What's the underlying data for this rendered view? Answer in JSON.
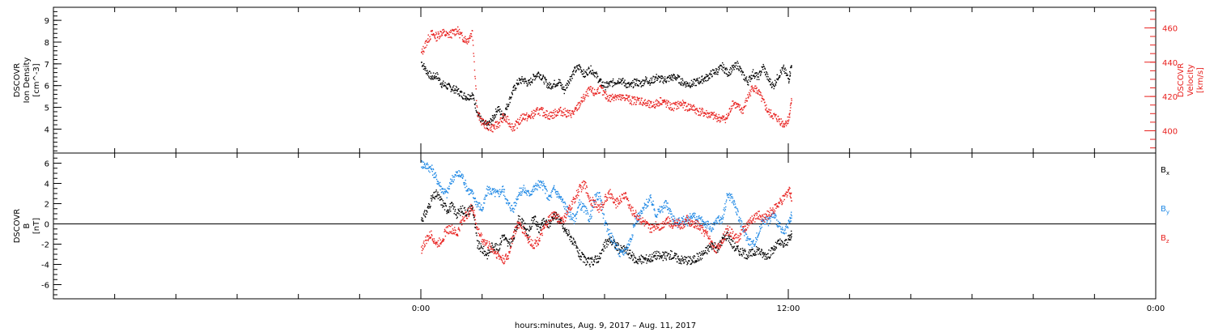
{
  "chart_data": [
    {
      "type": "scatter",
      "panel": "top",
      "ylabel_left": [
        "DSCOVR",
        "Ion Density",
        "[cm^-3]"
      ],
      "ylabel_right": [
        "DSCOVR",
        "Velocity",
        "[km/s]"
      ],
      "ylim_left": [
        2.9,
        9.6
      ],
      "ylim_right": [
        387,
        472
      ],
      "yticks_left": [
        "4",
        "5",
        "6",
        "7",
        "8",
        "9"
      ],
      "yticks_right": [
        "400",
        "420",
        "440",
        "460"
      ],
      "series": [
        {
          "axis": "left",
          "color": "#000000",
          "x": [
            0.0,
            0.5,
            1.0,
            1.5,
            2.0,
            2.5,
            3.0,
            3.5,
            4.0,
            4.5,
            5.0,
            5.5,
            6.0,
            6.5,
            7.0,
            7.5,
            8.0,
            8.5,
            9.0,
            9.5,
            10.0,
            10.5,
            11.0,
            11.5,
            12.0,
            12.5,
            13.0,
            13.5,
            14.0,
            14.5,
            15.0,
            15.5,
            16.0,
            16.5,
            17.0,
            17.5,
            18.0,
            18.5,
            19.0,
            19.5,
            20.0,
            20.5,
            21.0,
            21.5,
            22.0,
            22.5,
            23.0,
            23.5,
            24.0,
            24.5,
            25.0,
            25.5,
            26.0,
            26.5,
            27.0,
            27.5,
            28.0,
            28.5,
            29.0,
            29.5,
            30.0,
            30.5,
            31.0,
            31.5,
            32.0,
            32.5,
            33.0,
            33.5,
            34.0,
            34.5,
            35.0,
            35.5,
            36.0,
            36.3
          ],
          "y": [
            7.1,
            6.7,
            6.4,
            6.5,
            6.1,
            6.0,
            5.9,
            5.8,
            5.6,
            5.5,
            5.6,
            4.8,
            4.3,
            4.2,
            4.5,
            5.0,
            4.6,
            5.2,
            5.8,
            6.2,
            6.3,
            6.1,
            6.4,
            6.6,
            6.3,
            6.0,
            6.1,
            6.2,
            5.8,
            6.3,
            6.7,
            6.9,
            6.5,
            6.8,
            6.6,
            6.2,
            6.0,
            6.1,
            6.2,
            6.3,
            6.1,
            6.0,
            6.2,
            6.1,
            6.3,
            6.2,
            6.4,
            6.3,
            6.3,
            6.4,
            6.4,
            6.2,
            6.1,
            6.1,
            6.2,
            6.3,
            6.4,
            6.6,
            6.7,
            6.9,
            6.6,
            6.8,
            7.0,
            6.5,
            6.2,
            6.6,
            6.4,
            6.9,
            6.3,
            6.0,
            6.5,
            6.8,
            6.3,
            7.1
          ]
        },
        {
          "axis": "right",
          "color": "#e8201e",
          "x": [
            0.0,
            0.5,
            1.0,
            1.5,
            2.0,
            2.5,
            3.0,
            3.5,
            4.0,
            4.5,
            5.0,
            5.5,
            6.0,
            6.5,
            7.0,
            7.5,
            8.0,
            8.5,
            9.0,
            9.5,
            10.0,
            10.5,
            11.0,
            11.5,
            12.0,
            12.5,
            13.0,
            13.5,
            14.0,
            14.5,
            15.0,
            15.5,
            16.0,
            16.5,
            17.0,
            17.5,
            18.0,
            18.5,
            19.0,
            19.5,
            20.0,
            20.5,
            21.0,
            21.5,
            22.0,
            22.5,
            23.0,
            23.5,
            24.0,
            24.5,
            25.0,
            25.5,
            26.0,
            26.5,
            27.0,
            27.5,
            28.0,
            28.5,
            29.0,
            29.5,
            30.0,
            30.5,
            31.0,
            31.5,
            32.0,
            32.5,
            33.0,
            33.5,
            34.0,
            34.5,
            35.0,
            35.5,
            36.0,
            36.3
          ],
          "y": [
            445,
            452,
            457,
            455,
            458,
            456,
            457,
            459,
            455,
            453,
            458,
            410,
            405,
            403,
            402,
            404,
            408,
            406,
            402,
            405,
            409,
            408,
            410,
            412,
            411,
            409,
            410,
            412,
            411,
            410,
            411,
            416,
            420,
            424,
            422,
            425,
            421,
            419,
            421,
            419,
            420,
            418,
            418,
            418,
            416,
            415,
            416,
            418,
            416,
            414,
            415,
            416,
            414,
            414,
            412,
            411,
            410,
            409,
            408,
            407,
            408,
            417,
            414,
            412,
            420,
            426,
            423,
            417,
            411,
            409,
            407,
            404,
            407,
            420
          ]
        }
      ]
    },
    {
      "type": "scatter",
      "panel": "bottom",
      "ylabel_left": [
        "DSCOVR",
        "B",
        "[nT]"
      ],
      "ylim": [
        -7.4,
        7.0
      ],
      "yticks": [
        "-6",
        "-4",
        "-2",
        "0",
        "2",
        "4",
        "6"
      ],
      "legend": [
        {
          "label": "B",
          "sub": "x",
          "color": "#000000"
        },
        {
          "label": "B",
          "sub": "y",
          "color": "#1e88e5"
        },
        {
          "label": "B",
          "sub": "z",
          "color": "#e8201e"
        }
      ],
      "series": [
        {
          "name": "Bx",
          "color": "#000000",
          "x": [
            0.0,
            0.5,
            1.0,
            1.5,
            2.0,
            2.5,
            3.0,
            3.5,
            4.0,
            4.5,
            5.0,
            5.5,
            6.0,
            6.5,
            7.0,
            7.5,
            8.0,
            8.5,
            9.0,
            9.5,
            10.0,
            10.5,
            11.0,
            11.5,
            12.0,
            12.5,
            13.0,
            13.5,
            14.0,
            14.5,
            15.0,
            15.5,
            16.0,
            16.5,
            17.0,
            17.5,
            18.0,
            18.5,
            19.0,
            19.5,
            20.0,
            20.5,
            21.0,
            21.5,
            22.0,
            22.5,
            23.0,
            23.5,
            24.0,
            24.5,
            25.0,
            25.5,
            26.0,
            26.5,
            27.0,
            27.5,
            28.0,
            28.5,
            29.0,
            29.5,
            30.0,
            30.5,
            31.0,
            31.5,
            32.0,
            32.5,
            33.0,
            33.5,
            34.0,
            34.5,
            35.0,
            35.5,
            36.0,
            36.3
          ],
          "y": [
            0.5,
            1.2,
            2.5,
            3.0,
            2.2,
            1.5,
            1.8,
            1.0,
            1.5,
            1.2,
            1.8,
            -2.0,
            -2.5,
            -3.0,
            -2.0,
            -2.5,
            -1.0,
            -2.0,
            -1.5,
            0.5,
            0.0,
            -1.0,
            0.8,
            -0.5,
            0.2,
            0.0,
            1.0,
            0.5,
            -0.5,
            -1.0,
            -2.0,
            -3.0,
            -3.5,
            -3.8,
            -3.5,
            -3.2,
            -2.0,
            -1.5,
            -2.0,
            -2.5,
            -2.5,
            -3.0,
            -3.5,
            -3.5,
            -3.4,
            -3.3,
            -3.0,
            -3.2,
            -3.1,
            -3.0,
            -3.3,
            -3.5,
            -3.5,
            -3.6,
            -3.3,
            -3.0,
            -2.5,
            -2.0,
            -2.5,
            -1.5,
            -1.0,
            -2.0,
            -2.5,
            -2.8,
            -3.0,
            -2.8,
            -2.5,
            -3.0,
            -3.0,
            -2.5,
            -1.8,
            -2.0,
            -1.5,
            -1.0
          ]
        },
        {
          "name": "By",
          "color": "#1e88e5",
          "x": [
            0.0,
            0.5,
            1.0,
            1.5,
            2.0,
            2.5,
            3.0,
            3.5,
            4.0,
            4.5,
            5.0,
            5.5,
            6.0,
            6.5,
            7.0,
            7.5,
            8.0,
            8.5,
            9.0,
            9.5,
            10.0,
            10.5,
            11.0,
            11.5,
            12.0,
            12.5,
            13.0,
            13.5,
            14.0,
            14.5,
            15.0,
            15.5,
            16.0,
            16.5,
            17.0,
            17.5,
            18.0,
            18.5,
            19.0,
            19.5,
            20.0,
            20.5,
            21.0,
            21.5,
            22.0,
            22.5,
            23.0,
            23.5,
            24.0,
            24.5,
            25.0,
            25.5,
            26.0,
            26.5,
            27.0,
            27.5,
            28.0,
            28.5,
            29.0,
            29.5,
            30.0,
            30.5,
            31.0,
            31.5,
            32.0,
            32.5,
            33.0,
            33.5,
            34.0,
            34.5,
            35.0,
            35.5,
            36.0,
            36.3
          ],
          "y": [
            6.0,
            5.8,
            5.5,
            4.5,
            3.5,
            3.0,
            4.5,
            5.0,
            4.8,
            3.5,
            3.0,
            2.0,
            1.5,
            3.5,
            3.2,
            3.0,
            3.5,
            2.0,
            1.5,
            3.0,
            3.5,
            3.0,
            3.5,
            4.0,
            3.8,
            2.5,
            3.5,
            2.8,
            2.0,
            1.0,
            0.5,
            2.0,
            1.5,
            0.5,
            2.5,
            3.0,
            0.0,
            -1.0,
            -2.0,
            -3.0,
            -2.5,
            -1.5,
            0.5,
            1.0,
            2.0,
            2.5,
            1.0,
            1.5,
            2.0,
            1.0,
            0.0,
            0.5,
            0.2,
            1.0,
            0.5,
            0.3,
            0.0,
            -0.5,
            0.5,
            0.5,
            3.0,
            2.5,
            1.0,
            -0.5,
            -1.5,
            -2.0,
            -1.0,
            0.5,
            0.3,
            1.0,
            0.0,
            -1.0,
            0.0,
            1.0
          ]
        },
        {
          "name": "Bz",
          "color": "#e8201e",
          "x": [
            0.0,
            0.5,
            1.0,
            1.5,
            2.0,
            2.5,
            3.0,
            3.5,
            4.0,
            4.5,
            5.0,
            5.5,
            6.0,
            6.5,
            7.0,
            7.5,
            8.0,
            8.5,
            9.0,
            9.5,
            10.0,
            10.5,
            11.0,
            11.5,
            12.0,
            12.5,
            13.0,
            13.5,
            14.0,
            14.5,
            15.0,
            15.5,
            16.0,
            16.5,
            17.0,
            17.5,
            18.0,
            18.5,
            19.0,
            19.5,
            20.0,
            20.5,
            21.0,
            21.5,
            22.0,
            22.5,
            23.0,
            23.5,
            24.0,
            24.5,
            25.0,
            25.5,
            26.0,
            26.5,
            27.0,
            27.5,
            28.0,
            28.5,
            29.0,
            29.5,
            30.0,
            30.5,
            31.0,
            31.5,
            32.0,
            32.5,
            33.0,
            33.5,
            34.0,
            34.5,
            35.0,
            35.5,
            36.0,
            36.3
          ],
          "y": [
            -2.5,
            -1.5,
            -1.0,
            -2.0,
            -1.5,
            -0.5,
            -0.5,
            -1.0,
            0.5,
            1.0,
            1.8,
            -0.5,
            -1.5,
            -2.0,
            -2.5,
            -3.0,
            -3.5,
            -3.2,
            -1.0,
            0.0,
            -0.5,
            -1.5,
            -2.0,
            -1.5,
            -0.5,
            0.5,
            1.0,
            0.5,
            0.5,
            1.5,
            2.5,
            3.5,
            4.0,
            2.5,
            2.0,
            1.5,
            2.5,
            3.0,
            2.0,
            2.5,
            3.0,
            1.5,
            1.0,
            0.5,
            0.0,
            -0.5,
            0.0,
            -0.2,
            0.5,
            0.0,
            0.3,
            -0.2,
            0.5,
            0.0,
            0.0,
            -0.5,
            -1.0,
            -2.0,
            -2.5,
            -1.5,
            -0.5,
            -1.0,
            -1.5,
            -0.5,
            0.0,
            0.5,
            1.0,
            0.5,
            1.0,
            1.5,
            2.0,
            2.5,
            3.5,
            2.5
          ]
        }
      ]
    }
  ],
  "x_axis": {
    "range_hours": [
      -36.0,
      72.0
    ],
    "tick_labels": [
      {
        "h": 0,
        "label": "0:00"
      },
      {
        "h": 36,
        "label": "12:00"
      },
      {
        "h": 72,
        "label": "0:00"
      }
    ],
    "xlabel": "hours:minutes, Aug.  9, 2017 – Aug. 11, 2017"
  }
}
